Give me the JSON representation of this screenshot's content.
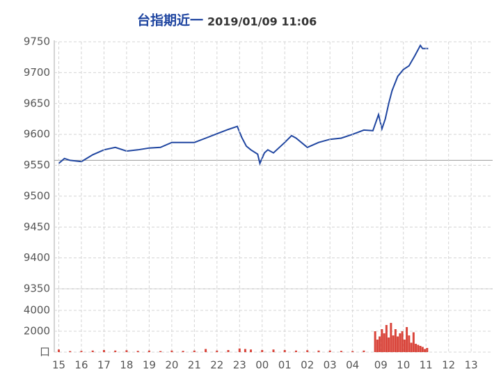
{
  "chart_data": [
    {
      "type": "line",
      "title": "台指期近一",
      "subtitle": "2019/01/09 11:06",
      "color": "#1f45a0",
      "reference_line": 9558,
      "reference_color": "#999999",
      "grid": true,
      "x": [
        0,
        0.25,
        0.5,
        1,
        1.5,
        2,
        2.5,
        3,
        3.5,
        4,
        4.5,
        5,
        5.5,
        6,
        6.5,
        7,
        7.5,
        7.9,
        8.1,
        8.3,
        8.5,
        8.8,
        8.9,
        9.1,
        9.25,
        9.5,
        10,
        10.3,
        10.5,
        11,
        11.5,
        12,
        12.5,
        13,
        13.5,
        13.9,
        14.15,
        14.3,
        14.45,
        14.6,
        14.75,
        15,
        15.25,
        15.5,
        15.75,
        16,
        16.1,
        16.35
      ],
      "values": [
        9553,
        9561,
        9558,
        9556,
        9567,
        9575,
        9579,
        9573,
        9575,
        9578,
        9579,
        9587,
        9587,
        9587,
        9594,
        9601,
        9608,
        9613,
        9595,
        9581,
        9575,
        9568,
        9553,
        9570,
        9575,
        9570,
        9587,
        9598,
        9594,
        9579,
        9587,
        9592,
        9594,
        9600,
        9607,
        9606,
        9632,
        9609,
        9625,
        9650,
        9671,
        9694,
        9705,
        9711,
        9727,
        9744,
        9739,
        9739
      ],
      "xlim": [
        -0.2,
        19.2
      ],
      "ylim": [
        9350,
        9750
      ],
      "yticks": [
        9350,
        9400,
        9450,
        9500,
        9550,
        9600,
        9650,
        9700,
        9750
      ]
    },
    {
      "type": "bar",
      "color": "#d9443a",
      "grid": true,
      "x": [
        0,
        0.5,
        1,
        1.5,
        2,
        2.5,
        3,
        3.5,
        4,
        4.5,
        5,
        5.5,
        6,
        6.5,
        7,
        7.5,
        8,
        8.25,
        8.5,
        9,
        9.5,
        10,
        10.5,
        11,
        11.5,
        12,
        12.5,
        13,
        13.5,
        14.0,
        14.1,
        14.2,
        14.3,
        14.4,
        14.5,
        14.6,
        14.7,
        14.8,
        14.9,
        15.0,
        15.1,
        15.2,
        15.3,
        15.4,
        15.5,
        15.6,
        15.7,
        15.8,
        15.9,
        16.0,
        16.1,
        16.2,
        16.3
      ],
      "values": [
        250,
        100,
        120,
        150,
        200,
        150,
        180,
        120,
        150,
        100,
        150,
        120,
        150,
        300,
        150,
        200,
        350,
        300,
        250,
        200,
        250,
        200,
        150,
        180,
        150,
        150,
        120,
        100,
        150,
        2000,
        1200,
        1500,
        2200,
        1800,
        2600,
        1400,
        2800,
        1600,
        2200,
        1500,
        1800,
        2000,
        1200,
        2400,
        1600,
        900,
        1900,
        800,
        700,
        600,
        500,
        300,
        400
      ],
      "xlim": [
        -0.2,
        19.2
      ],
      "ylim": [
        0,
        6000
      ],
      "yticks": [
        {
          "value": 0,
          "label": "口"
        },
        2000,
        4000
      ],
      "xticks": [
        {
          "value": 0,
          "label": "15"
        },
        {
          "value": 1,
          "label": "16"
        },
        {
          "value": 2,
          "label": "17"
        },
        {
          "value": 3,
          "label": "18"
        },
        {
          "value": 4,
          "label": "19"
        },
        {
          "value": 5,
          "label": "20"
        },
        {
          "value": 6,
          "label": "21"
        },
        {
          "value": 7,
          "label": "22"
        },
        {
          "value": 8,
          "label": "23"
        },
        {
          "value": 9,
          "label": "00"
        },
        {
          "value": 10,
          "label": "01"
        },
        {
          "value": 11,
          "label": "02"
        },
        {
          "value": 12,
          "label": "03"
        },
        {
          "value": 13,
          "label": "04"
        },
        {
          "value": 14.25,
          "label": "09"
        },
        {
          "value": 15.25,
          "label": "10"
        },
        {
          "value": 16.25,
          "label": "11"
        },
        {
          "value": 17.25,
          "label": "12"
        },
        {
          "value": 18.25,
          "label": "13"
        }
      ]
    }
  ]
}
